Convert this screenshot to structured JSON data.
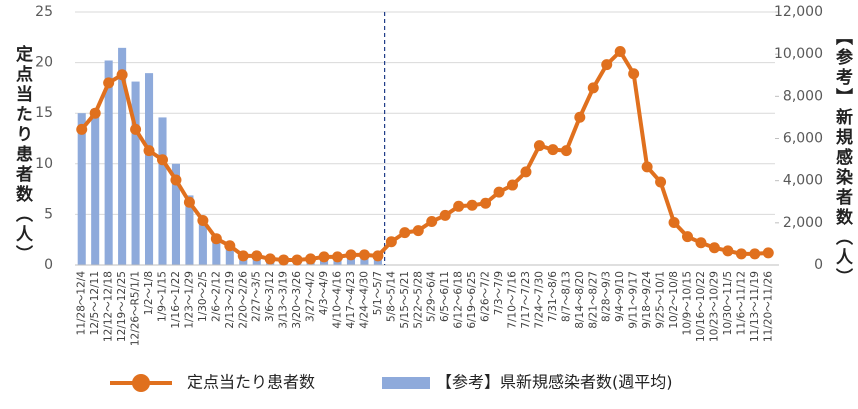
{
  "chart_data": {
    "type": "combo",
    "categories": [
      "11/28～12/4",
      "12/5～12/11",
      "12/12～12/18",
      "12/19～12/25",
      "12/26～R5/1/1",
      "1/2～1/8",
      "1/9～1/15",
      "1/16～1/22",
      "1/23～1/29",
      "1/30～2/5",
      "2/6～2/12",
      "2/13～2/19",
      "2/20～2/26",
      "2/27～3/5",
      "3/6～3/12",
      "3/13～3/19",
      "3/20～3/26",
      "3/27～4/2",
      "4/3～4/9",
      "4/10～4/16",
      "4/17～4/23",
      "4/24～4/30",
      "5/1～5/7",
      "5/8～5/14",
      "5/15～5/21",
      "5/22～5/28",
      "5/29～6/4",
      "6/5～6/11",
      "6/12～6/18",
      "6/19～6/25",
      "6/26～7/2",
      "7/3～7/9",
      "7/10～7/16",
      "7/17～7/23",
      "7/24～7/30",
      "7/31～8/6",
      "8/7～8/13",
      "8/14～8/20",
      "8/21～8/27",
      "8/28～9/3",
      "9/4～9/10",
      "9/11～9/17",
      "9/18～9/24",
      "9/25～10/1",
      "10/2～10/8",
      "10/9～10/15",
      "10/16～10/22",
      "10/23～10/29",
      "10/30～11/5",
      "11/6～11/12",
      "11/13～11/19",
      "11/20～11/26"
    ],
    "series": [
      {
        "name": "定点当たり患者数",
        "type": "line",
        "axis": "y",
        "color": "#e0701e",
        "values": [
          13.4,
          15.0,
          18.0,
          18.8,
          13.4,
          11.3,
          10.4,
          8.4,
          6.2,
          4.4,
          2.6,
          1.9,
          0.9,
          0.9,
          0.6,
          0.5,
          0.5,
          0.6,
          0.8,
          0.8,
          1.0,
          1.0,
          0.9,
          2.3,
          3.2,
          3.4,
          4.3,
          4.9,
          5.8,
          5.9,
          6.1,
          7.2,
          7.9,
          9.2,
          11.8,
          11.4,
          11.3,
          14.6,
          17.5,
          19.8,
          21.1,
          18.9,
          9.7,
          8.2,
          4.2,
          2.8,
          2.2,
          1.7,
          1.4,
          1.1,
          1.1,
          1.2
        ]
      },
      {
        "name": "【参考】県新規感染者数(週平均)",
        "type": "bar",
        "axis": "y2",
        "color": "#8eaadb",
        "values": [
          7200,
          7400,
          9700,
          10300,
          8700,
          9100,
          7000,
          4800,
          3300,
          2100,
          1300,
          800,
          400,
          300,
          250,
          200,
          200,
          250,
          300,
          350,
          400,
          450,
          400,
          null,
          null,
          null,
          null,
          null,
          null,
          null,
          null,
          null,
          null,
          null,
          null,
          null,
          null,
          null,
          null,
          null,
          null,
          null,
          null,
          null,
          null,
          null,
          null,
          null,
          null,
          null,
          null,
          null
        ]
      }
    ],
    "y_label": "定点当たり患者数（人）",
    "y2_label": "【参考】新規感染者数（人）",
    "ylim": [
      0,
      25
    ],
    "yticks": [
      0,
      5,
      10,
      15,
      20,
      25
    ],
    "y2lim": [
      0,
      12000
    ],
    "y2ticks": [
      0,
      {
        "value": 2000,
        "label": "2,000"
      },
      {
        "value": 4000,
        "label": "4,000"
      },
      {
        "value": 6000,
        "label": "6,000"
      },
      {
        "value": 8000,
        "label": "8,000"
      },
      {
        "value": 10000,
        "label": "10,000"
      },
      {
        "value": 12000,
        "label": "12,000"
      }
    ],
    "grid": true,
    "legend": "bottom"
  }
}
